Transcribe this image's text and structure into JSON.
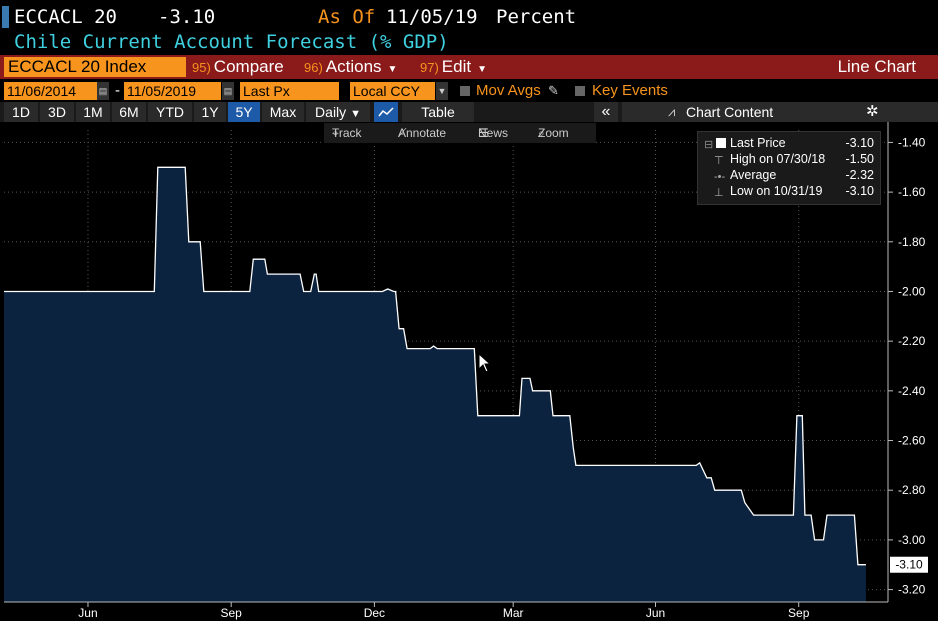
{
  "header": {
    "ticker": "ECCACL 20",
    "value": "-3.10",
    "as_of_label": "As Of",
    "as_of_date": "11/05/19",
    "unit": "Percent",
    "subtitle": "Chile Current Account Forecast (% GDP)"
  },
  "toolbar": {
    "ticker_field": "ECCACL 20 Index",
    "compare": {
      "num": "95)",
      "label": "Compare"
    },
    "actions": {
      "num": "96)",
      "label": "Actions"
    },
    "edit": {
      "num": "97)",
      "label": "Edit"
    },
    "view_label": "Line Chart"
  },
  "options": {
    "start_date": "11/06/2014",
    "date_sep": "-",
    "end_date": "11/05/2019",
    "field": "Last Px",
    "currency": "Local CCY",
    "mov_avgs": "Mov Avgs",
    "key_events": "Key Events"
  },
  "ranges": {
    "items": [
      "1D",
      "3D",
      "1M",
      "6M",
      "YTD",
      "1Y",
      "5Y",
      "Max"
    ],
    "active": "5Y",
    "frequency": "Daily",
    "table": "Table",
    "chart_content": "Chart Content"
  },
  "subtools": {
    "track": "Track",
    "annotate": "Annotate",
    "news": "News",
    "zoom": "Zoom"
  },
  "legend": {
    "last_price": {
      "label": "Last Price",
      "value": "-3.10"
    },
    "high": {
      "label": "High on 07/30/18",
      "value": "-1.50"
    },
    "average": {
      "label": "Average",
      "value": "-2.32"
    },
    "low": {
      "label": "Low on 10/31/19",
      "value": "-3.10"
    }
  },
  "colors": {
    "area_fill": "#0c2340",
    "line": "#ffffff",
    "accent_orange": "#f7941d",
    "toolbar_red": "#8b1a1a",
    "subtitle_cyan": "#3fd0e0"
  },
  "chart_data": {
    "type": "area",
    "ylim": [
      -3.25,
      -1.35
    ],
    "yticks": [
      "-1.40",
      "-1.60",
      "-1.80",
      "-2.00",
      "-2.20",
      "-2.40",
      "-2.60",
      "-2.80",
      "-3.00",
      "-3.20"
    ],
    "ytick_values": [
      -1.4,
      -1.6,
      -1.8,
      -2.0,
      -2.2,
      -2.4,
      -2.6,
      -2.8,
      -3.0,
      -3.2
    ],
    "xticks": [
      {
        "label": "Jun",
        "x": 0.095
      },
      {
        "label": "Sep",
        "x": 0.257
      },
      {
        "label": "Dec",
        "x": 0.419
      },
      {
        "label": "Mar",
        "x": 0.576
      },
      {
        "label": "Jun",
        "x": 0.737
      },
      {
        "label": "Sep",
        "x": 0.899
      }
    ],
    "last_value_label": "-3.10",
    "grid": true,
    "legend_position": "top-right",
    "series": [
      {
        "values": [
          [
            0.0,
            -2.0
          ],
          [
            0.17,
            -2.0
          ],
          [
            0.174,
            -1.5
          ],
          [
            0.205,
            -1.5
          ],
          [
            0.209,
            -1.8
          ],
          [
            0.222,
            -1.8
          ],
          [
            0.226,
            -2.0
          ],
          [
            0.278,
            -2.0
          ],
          [
            0.282,
            -1.87
          ],
          [
            0.295,
            -1.87
          ],
          [
            0.298,
            -1.93
          ],
          [
            0.335,
            -1.93
          ],
          [
            0.339,
            -2.0
          ],
          [
            0.347,
            -2.0
          ],
          [
            0.351,
            -1.93
          ],
          [
            0.353,
            -1.93
          ],
          [
            0.356,
            -2.0
          ],
          [
            0.428,
            -2.0
          ],
          [
            0.434,
            -1.99
          ],
          [
            0.441,
            -2.0
          ],
          [
            0.443,
            -2.0
          ],
          [
            0.447,
            -2.15
          ],
          [
            0.452,
            -2.15
          ],
          [
            0.456,
            -2.23
          ],
          [
            0.482,
            -2.23
          ],
          [
            0.486,
            -2.22
          ],
          [
            0.49,
            -2.23
          ],
          [
            0.532,
            -2.23
          ],
          [
            0.536,
            -2.5
          ],
          [
            0.583,
            -2.5
          ],
          [
            0.586,
            -2.35
          ],
          [
            0.595,
            -2.35
          ],
          [
            0.598,
            -2.4
          ],
          [
            0.618,
            -2.4
          ],
          [
            0.621,
            -2.5
          ],
          [
            0.64,
            -2.5
          ],
          [
            0.644,
            -2.63
          ],
          [
            0.647,
            -2.7
          ],
          [
            0.783,
            -2.7
          ],
          [
            0.787,
            -2.69
          ],
          [
            0.795,
            -2.75
          ],
          [
            0.8,
            -2.75
          ],
          [
            0.804,
            -2.8
          ],
          [
            0.834,
            -2.8
          ],
          [
            0.838,
            -2.85
          ],
          [
            0.848,
            -2.9
          ],
          [
            0.893,
            -2.9
          ],
          [
            0.897,
            -2.5
          ],
          [
            0.903,
            -2.5
          ],
          [
            0.906,
            -2.9
          ],
          [
            0.913,
            -2.9
          ],
          [
            0.917,
            -3.0
          ],
          [
            0.927,
            -3.0
          ],
          [
            0.931,
            -2.9
          ],
          [
            0.962,
            -2.9
          ],
          [
            0.966,
            -3.1
          ],
          [
            0.975,
            -3.1
          ]
        ]
      }
    ]
  }
}
